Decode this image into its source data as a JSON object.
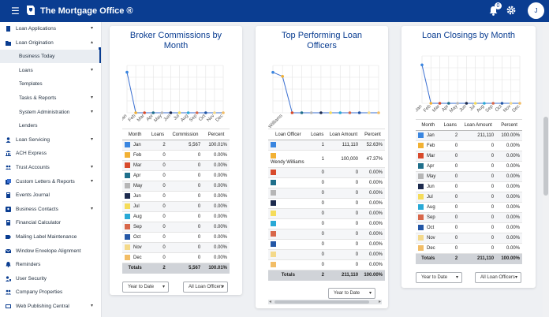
{
  "app": {
    "title": "The Mortgage Office ®",
    "notif_count": "0",
    "avatar": "J"
  },
  "sidebar": {
    "items": [
      {
        "label": "Loan Applications",
        "icon": "document-icon",
        "caret": "▾",
        "sub": false,
        "active": false
      },
      {
        "label": "Loan Origination",
        "icon": "folder-icon",
        "caret": "▴",
        "sub": false,
        "active": false
      },
      {
        "label": "Business Today",
        "icon": "",
        "caret": "",
        "sub": true,
        "active": true
      },
      {
        "label": "Loans",
        "icon": "",
        "caret": "▾",
        "sub": true,
        "active": false
      },
      {
        "label": "Templates",
        "icon": "",
        "caret": "",
        "sub": true,
        "active": false
      },
      {
        "label": "Tasks & Reports",
        "icon": "",
        "caret": "▾",
        "sub": true,
        "active": false
      },
      {
        "label": "System Administration",
        "icon": "",
        "caret": "▾",
        "sub": true,
        "active": false
      },
      {
        "label": "Lenders",
        "icon": "",
        "caret": "",
        "sub": true,
        "active": false
      },
      {
        "label": "Loan Servicing",
        "icon": "person-icon",
        "caret": "▾",
        "sub": false,
        "active": false
      },
      {
        "label": "ACH Express",
        "icon": "bank-icon",
        "caret": "",
        "sub": false,
        "active": false
      },
      {
        "label": "Trust Accounts",
        "icon": "users-icon",
        "caret": "▾",
        "sub": false,
        "active": false
      },
      {
        "label": "Custom Letters & Reports",
        "icon": "letters-icon",
        "caret": "▾",
        "sub": false,
        "active": false
      },
      {
        "label": "Events Journal",
        "icon": "journal-icon",
        "caret": "",
        "sub": false,
        "active": false
      },
      {
        "label": "Business Contacts",
        "icon": "contacts-icon",
        "caret": "▾",
        "sub": false,
        "active": false
      },
      {
        "label": "Financial Calculator",
        "icon": "calculator-icon",
        "caret": "",
        "sub": false,
        "active": false
      },
      {
        "label": "Mailing Label Maintenance",
        "icon": "label-icon",
        "caret": "",
        "sub": false,
        "active": false
      },
      {
        "label": "Window Envelope Alignment",
        "icon": "envelope-icon",
        "caret": "",
        "sub": false,
        "active": false
      },
      {
        "label": "Reminders",
        "icon": "bell-icon",
        "caret": "",
        "sub": false,
        "active": false
      },
      {
        "label": "User Security",
        "icon": "user-lock-icon",
        "caret": "",
        "sub": false,
        "active": false
      },
      {
        "label": "Company Properties",
        "icon": "building-icon",
        "caret": "",
        "sub": false,
        "active": false
      },
      {
        "label": "Web Publishing Central",
        "icon": "globe-icon",
        "caret": "▾",
        "sub": false,
        "active": false
      }
    ]
  },
  "colors": {
    "months": [
      "#3a86e0",
      "#f2b134",
      "#d84a2b",
      "#1f6f8b",
      "#b6b6b6",
      "#1d2b4e",
      "#f5dc5a",
      "#29a9d6",
      "#d8674a",
      "#2457a6",
      "#f4d98a",
      "#f2bd66"
    ],
    "officers": [
      "#3a86e0",
      "#f2b134",
      "#d84a2b",
      "#1f6f8b",
      "#b6b6b6",
      "#1d2b4e",
      "#f5dc5a",
      "#29a9d6",
      "#d8674a",
      "#2457a6",
      "#f4d98a",
      "#f2bd66"
    ],
    "line": "#3a6fd1"
  },
  "commissions": {
    "title": "Broker Commissions by Month",
    "headers": [
      "Month",
      "Loans",
      "Commission",
      "Percent"
    ],
    "rows": [
      [
        "Jan",
        "2",
        "5,567",
        "100.01%"
      ],
      [
        "Feb",
        "0",
        "0",
        "0.00%"
      ],
      [
        "Mar",
        "0",
        "0",
        "0.00%"
      ],
      [
        "Apr",
        "0",
        "0",
        "0.00%"
      ],
      [
        "May",
        "0",
        "0",
        "0.00%"
      ],
      [
        "Jun",
        "0",
        "0",
        "0.00%"
      ],
      [
        "Jul",
        "0",
        "0",
        "0.00%"
      ],
      [
        "Aug",
        "0",
        "0",
        "0.00%"
      ],
      [
        "Sep",
        "0",
        "0",
        "0.00%"
      ],
      [
        "Oct",
        "0",
        "0",
        "0.00%"
      ],
      [
        "Nov",
        "0",
        "0",
        "0.00%"
      ],
      [
        "Dec",
        "0",
        "0",
        "0.00%"
      ]
    ],
    "totals": [
      "Totals",
      "2",
      "5,567",
      "100.01%"
    ],
    "period": "Year to Date",
    "filter": "All Loan Officers"
  },
  "officers": {
    "title": "Top Performing Loan Officers",
    "headers": [
      "Loan Officer",
      "Loans",
      "Loan Amount",
      "Percent"
    ],
    "rows": [
      [
        "",
        "1",
        "111,110",
        "52.63%"
      ],
      [
        "Wendy Williams",
        "1",
        "100,000",
        "47.37%"
      ],
      [
        "",
        "0",
        "0",
        "0.00%"
      ],
      [
        "",
        "0",
        "0",
        "0.00%"
      ],
      [
        "",
        "0",
        "0",
        "0.00%"
      ],
      [
        "",
        "0",
        "0",
        "0.00%"
      ],
      [
        "",
        "0",
        "0",
        "0.00%"
      ],
      [
        "",
        "0",
        "0",
        "0.00%"
      ],
      [
        "",
        "0",
        "0",
        "0.00%"
      ],
      [
        "",
        "0",
        "0",
        "0.00%"
      ],
      [
        "",
        "0",
        "0",
        "0.00%"
      ],
      [
        "",
        "0",
        "0",
        "0.00%"
      ]
    ],
    "totals": [
      "Totals",
      "2",
      "211,110",
      "100.00%"
    ],
    "period": "Year to Date"
  },
  "closings": {
    "title": "Loan Closings by Month",
    "headers": [
      "Month",
      "Loans",
      "Loan Amount",
      "Percent"
    ],
    "rows": [
      [
        "Jan",
        "2",
        "211,110",
        "100.00%"
      ],
      [
        "Feb",
        "0",
        "0",
        "0.00%"
      ],
      [
        "Mar",
        "0",
        "0",
        "0.00%"
      ],
      [
        "Apr",
        "0",
        "0",
        "0.00%"
      ],
      [
        "May",
        "0",
        "0",
        "0.00%"
      ],
      [
        "Jun",
        "0",
        "0",
        "0.00%"
      ],
      [
        "Jul",
        "0",
        "0",
        "0.00%"
      ],
      [
        "Aug",
        "0",
        "0",
        "0.00%"
      ],
      [
        "Sep",
        "0",
        "0",
        "0.00%"
      ],
      [
        "Oct",
        "0",
        "0",
        "0.00%"
      ],
      [
        "Nov",
        "0",
        "0",
        "0.00%"
      ],
      [
        "Dec",
        "0",
        "0",
        "0.00%"
      ]
    ],
    "totals": [
      "Totals",
      "2",
      "211,110",
      "100.00%"
    ],
    "period": "Year to Date",
    "filter": "All Loan Officers"
  },
  "chart_data": [
    {
      "type": "line",
      "title": "Broker Commissions by Month",
      "categories": [
        "Jan",
        "Feb",
        "Mar",
        "Apr",
        "May",
        "Jun",
        "Jul",
        "Aug",
        "Sep",
        "Oct",
        "Nov",
        "Dec"
      ],
      "values": [
        5567,
        0,
        0,
        0,
        0,
        0,
        0,
        0,
        0,
        0,
        0,
        0
      ],
      "ylim": [
        0,
        6500
      ],
      "grid": true
    },
    {
      "type": "line",
      "title": "Top Performing Loan Officers",
      "categories": [
        "",
        "Wendy Williams",
        "",
        "",
        "",
        "",
        "",
        "",
        "",
        "",
        "",
        ""
      ],
      "values": [
        111110,
        100000,
        0,
        0,
        0,
        0,
        0,
        0,
        0,
        0,
        0,
        0
      ],
      "ylim": [
        0,
        130000
      ],
      "grid": true
    },
    {
      "type": "line",
      "title": "Loan Closings by Month",
      "categories": [
        "Jan",
        "Feb",
        "Mar",
        "Apr",
        "May",
        "Jun",
        "Jul",
        "Aug",
        "Sep",
        "Oct",
        "Nov",
        "Dec"
      ],
      "values": [
        211110,
        0,
        0,
        0,
        0,
        0,
        0,
        0,
        0,
        0,
        0,
        0
      ],
      "ylim": [
        0,
        260000
      ],
      "grid": true
    }
  ]
}
